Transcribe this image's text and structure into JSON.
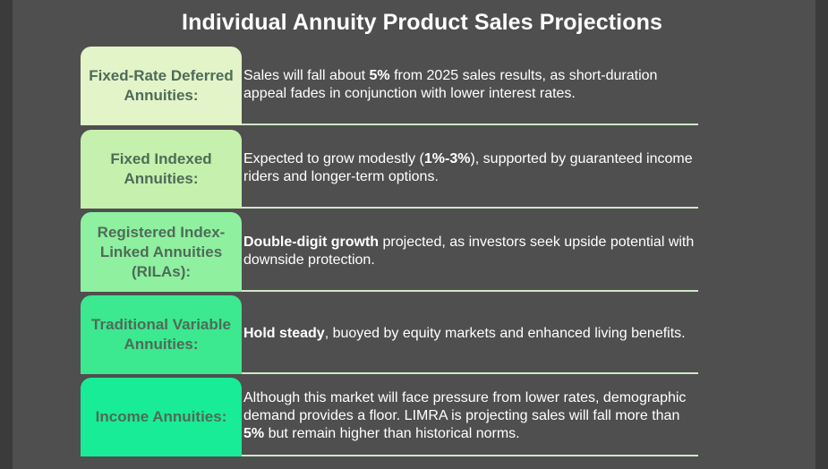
{
  "title": "Individual Annuity Product Sales Projections",
  "rows": [
    {
      "label": "Fixed-Rate Deferred Annuities:",
      "color": "#e2f4c8",
      "segments": [
        {
          "text": "Sales ",
          "bold": false
        },
        {
          "text": "will",
          "bold": false
        },
        {
          "text": " fall about ",
          "bold": false
        },
        {
          "text": "5%",
          "bold": true
        },
        {
          "text": " from 2025 sales results, as short-duration appeal fades in conjunction with lower interest rates.",
          "bold": false
        }
      ]
    },
    {
      "label": "Fixed Indexed Annuities:",
      "color": "#c5f0ad",
      "segments": [
        {
          "text": " Expected to grow modestly (",
          "bold": false
        },
        {
          "text": "1%-3%",
          "bold": true
        },
        {
          "text": "), supported by guaranteed income riders and longer-term options.",
          "bold": false
        }
      ]
    },
    {
      "label": "Registered Index-Linked Annuities (RILAs):",
      "color": "#8ff0a0",
      "segments": [
        {
          "text": "Double-digit growth",
          "bold": true
        },
        {
          "text": " projected, as investors seek upside potential with downside protection.",
          "bold": false
        }
      ]
    },
    {
      "label": "Traditional Variable Annuities:",
      "color": "#3ce890",
      "segments": [
        {
          "text": "Hold steady",
          "bold": true
        },
        {
          "text": ", buoyed by equity markets and enhanced living benefits.",
          "bold": false
        }
      ]
    },
    {
      "label": "Income Annuities:",
      "color": "#19ec96",
      "segments": [
        {
          "text": "Although this market will face pressure from lower rates, demographic demand provides a floor. LIMRA is projecting sales will fall more than ",
          "bold": false
        },
        {
          "text": "5%",
          "bold": true
        },
        {
          "text": " but remain higher than historical norms.",
          "bold": false
        }
      ]
    }
  ]
}
